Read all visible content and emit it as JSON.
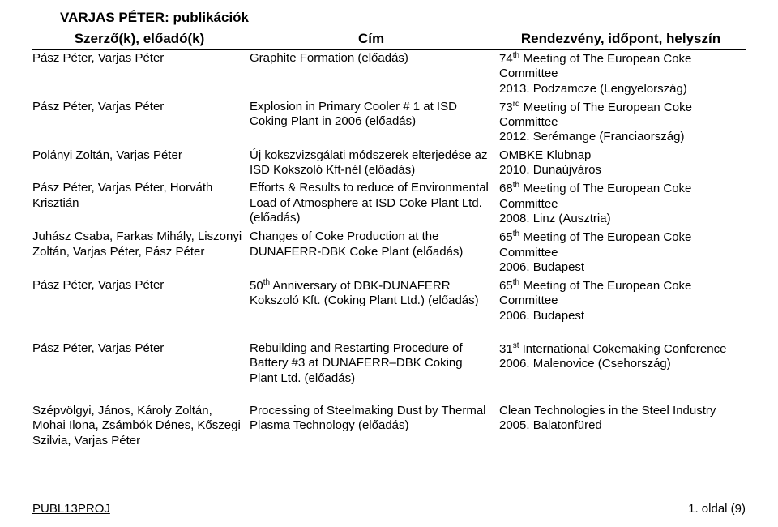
{
  "page": {
    "title": "VARJAS PÉTER: publikációk",
    "footer_left": "PUBL13PROJ",
    "footer_right": "1. oldal (9)"
  },
  "headers": {
    "c1": "Szerző(k), előadó(k)",
    "c2": "Cím",
    "c3": "Rendezvény, időpont, helyszín"
  },
  "rows": [
    {
      "authors": "Pász Péter, Varjas Péter",
      "title_html": "Graphite Formation (előadás)",
      "event_html": "74<span class='sup'>th</span> Meeting of The European Coke Committee<br>2013. Podzamcze (Lengyelország)"
    },
    {
      "authors": "Pász Péter, Varjas Péter",
      "title_html": "Explosion in Primary Cooler # 1 at ISD Coking Plant in 2006 (előadás)",
      "event_html": "73<span class='sup'>rd</span> Meeting of The European Coke Committee<br>2012. Serémange (Franciaország)"
    },
    {
      "authors": "Polányi Zoltán, Varjas Péter",
      "title_html": "Új kokszvizsgálati módszerek elterjedése az ISD Kokszoló Kft-nél (előadás)",
      "event_html": "OMBKE Klubnap<br>2010. Dunaújváros"
    },
    {
      "authors": "Pász Péter, Varjas Péter, Horváth Krisztián",
      "title_html": "Efforts & Results to reduce of Environmental Load of Atmosphere at ISD Coke Plant Ltd. (előadás)",
      "event_html": "68<span class='sup'>th</span> Meeting of The European Coke Committee<br>2008. Linz (Ausztria)"
    },
    {
      "authors": "Juhász Csaba, Farkas Mihály, Liszonyi Zoltán, Varjas Péter, Pász Péter",
      "title_html": "Changes of Coke Production at the DUNAFERR-DBK Coke Plant (előadás)",
      "event_html": "65<span class='sup'>th</span> Meeting of The European Coke Committee<br>2006. Budapest"
    },
    {
      "authors": "Pász Péter, Varjas Péter",
      "title_html": "50<span class='sup'>th</span> Anniversary of DBK-DUNAFERR Kokszoló Kft. (Coking Plant Ltd.) (előadás)",
      "event_html": "65<span class='sup'>th</span> Meeting of The European Coke Committee<br>2006. Budapest"
    },
    {
      "authors": "Pász Péter, Varjas Péter",
      "title_html": "Rebuilding and Restarting Procedure of Battery #3 at DUNAFERR–DBK Coking Plant Ltd. (előadás)",
      "event_html": "31<span class='sup'>st</span> International Cokemaking Conference<br>2006. Malenovice (Csehország)"
    },
    {
      "authors": "Szépvölgyi, János, Károly Zoltán, Mohai Ilona, Zsámbók Dénes, Kőszegi Szilvia, Varjas Péter",
      "title_html": "Processing of Steelmaking Dust by Thermal Plasma Technology (előadás)",
      "event_html": "Clean Technologies in the Steel Industry<br>2005. Balatonfüred"
    }
  ],
  "spacer_after": [
    5,
    6
  ]
}
